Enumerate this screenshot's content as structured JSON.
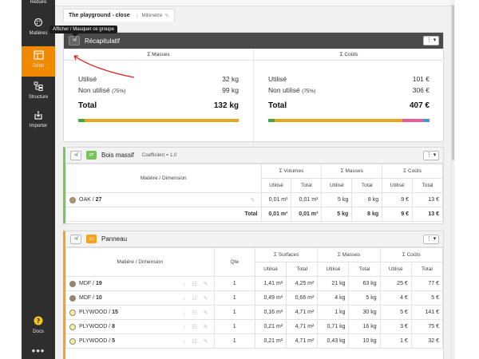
{
  "sidebar": {
    "items": [
      {
        "label": "Réduire",
        "icon": "collapse-icon"
      },
      {
        "label": "Matières",
        "icon": "palette-icon"
      },
      {
        "label": "Débit",
        "icon": "table-icon"
      },
      {
        "label": "Structure",
        "icon": "structure-icon"
      },
      {
        "label": "Importer",
        "icon": "import-icon"
      },
      {
        "label": "Docs",
        "icon": "help-icon"
      }
    ],
    "more": "•••"
  },
  "tooltip": "Afficher / Masquer ce groupe",
  "project": {
    "name": "The playground - close",
    "unit": "Millimètre"
  },
  "recap": {
    "title": "Récapitulatif",
    "masses": {
      "title": "Σ Masses",
      "used_label": "Utilisé",
      "used": "32 kg",
      "unused_label": "Non utilisé",
      "unused_pct": "(75%)",
      "unused": "99 kg",
      "total_label": "Total",
      "total": "132 kg"
    },
    "couts": {
      "title": "Σ Coûts",
      "used_label": "Utilisé",
      "used": "101 €",
      "unused_label": "Non utilisé",
      "unused_pct": "(75%)",
      "unused": "306 €",
      "total_label": "Total",
      "total": "407 €"
    }
  },
  "bois": {
    "title": "Bois massif",
    "coef": "Coefficient = 1,0",
    "headers": {
      "material": "Matière / Dimension",
      "volumes": "Σ Volumes",
      "masses": "Σ Masses",
      "couts": "Σ Coûts",
      "used": "Utilisé",
      "total": "Total"
    },
    "rows": [
      {
        "name": "OAK",
        "dim": "27",
        "vol_used": "0,01 m³",
        "vol_total": "0,01 m³",
        "mass_used": "5 kg",
        "mass_total": "8 kg",
        "cost_used": "9 €",
        "cost_total": "13 €"
      }
    ],
    "total": {
      "label": "Total",
      "vol_used": "0,01 m³",
      "vol_total": "0,01 m³",
      "mass_used": "5 kg",
      "mass_total": "8 kg",
      "cost_used": "9 €",
      "cost_total": "13 €"
    }
  },
  "panneau": {
    "title": "Panneau",
    "headers": {
      "material": "Matière / Dimension",
      "qte": "Qte",
      "surfaces": "Σ Surfaces",
      "masses": "Σ Masses",
      "couts": "Σ Coûts",
      "used": "Utilisé",
      "total": "Total"
    },
    "rows": [
      {
        "name": "MDF",
        "dim": "19",
        "qte": "1",
        "s_used": "1,41 m²",
        "s_total": "4,25 m²",
        "m_used": "21 kg",
        "m_total": "63 kg",
        "c_used": "25 €",
        "c_total": "77 €"
      },
      {
        "name": "MDF",
        "dim": "10",
        "qte": "1",
        "s_used": "0,49 m²",
        "s_total": "0,66 m²",
        "m_used": "4 kg",
        "m_total": "5 kg",
        "c_used": "4 €",
        "c_total": "5 €"
      },
      {
        "name": "PLYWOOD",
        "dim": "15",
        "qte": "1",
        "s_used": "0,16 m²",
        "s_total": "4,71 m²",
        "m_used": "1 kg",
        "m_total": "30 kg",
        "c_used": "5 €",
        "c_total": "141 €"
      },
      {
        "name": "PLYWOOD",
        "dim": "8",
        "qte": "1",
        "s_used": "0,21 m²",
        "s_total": "4,71 m²",
        "m_used": "0,71 kg",
        "m_total": "16 kg",
        "c_used": "3 €",
        "c_total": "75 €"
      },
      {
        "name": "PLYWOOD",
        "dim": "5",
        "qte": "1",
        "s_used": "0,21 m²",
        "s_total": "4,71 m²",
        "m_used": "0,43 kg",
        "m_total": "10 kg",
        "c_used": "1 €",
        "c_total": "32 €"
      }
    ]
  },
  "colors": {
    "accent": "#f08a00",
    "oak": "#b89468",
    "mdf": "#a0845c",
    "plywood": "#f6ee9a",
    "bar_green": "#45a648",
    "bar_orange": "#e2a91e",
    "bar_pink": "#e85c9a",
    "bar_blue": "#4a90d9"
  }
}
